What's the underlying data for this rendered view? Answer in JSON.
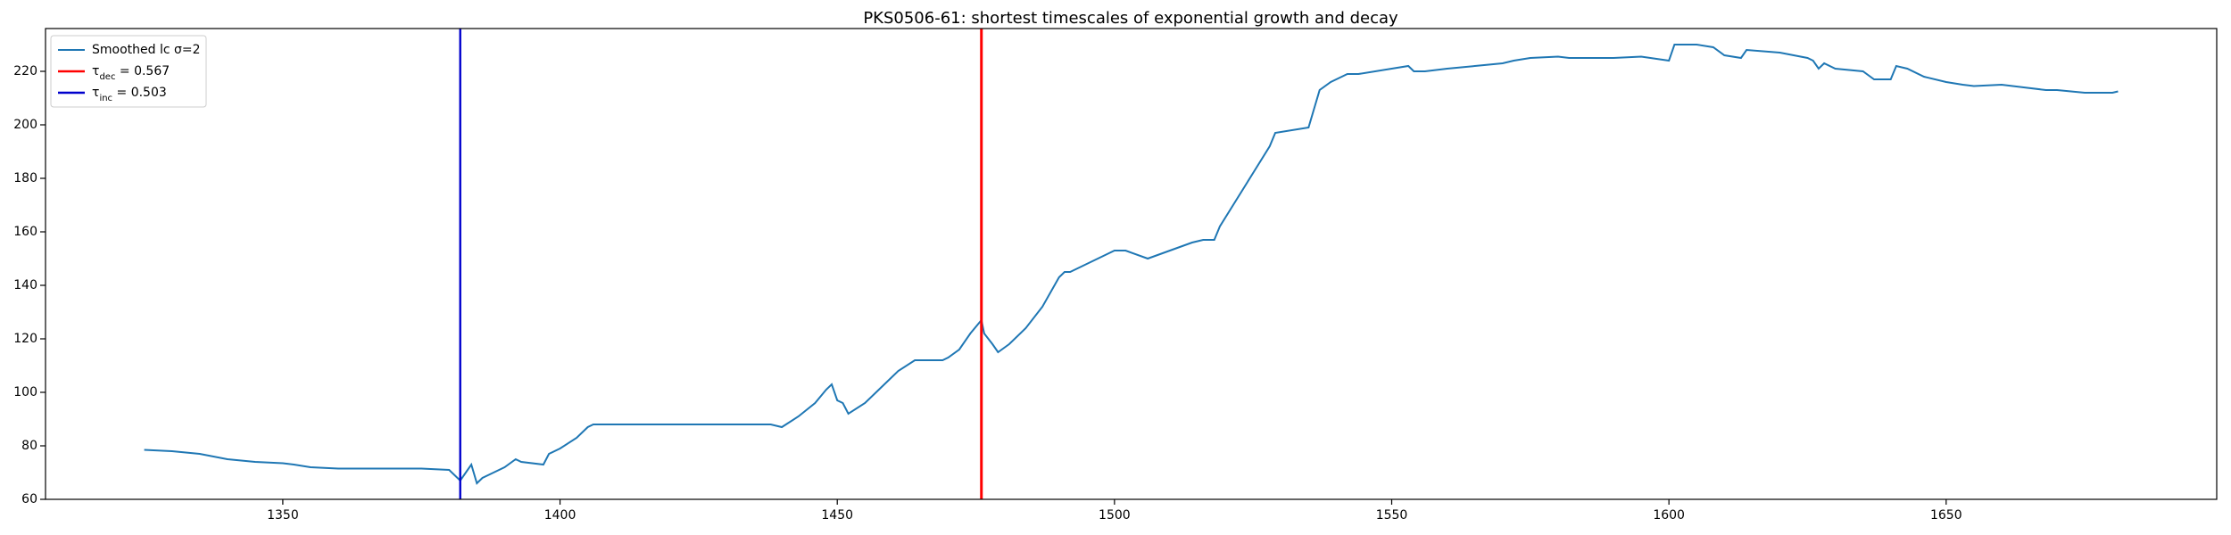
{
  "chart_data": {
    "type": "line",
    "title": "PKS0506-61: shortest timescales of exponential growth and decay",
    "x": [
      1325,
      1330,
      1335,
      1340,
      1345,
      1350,
      1352,
      1355,
      1360,
      1365,
      1370,
      1375,
      1380,
      1381,
      1382,
      1383,
      1384,
      1385,
      1386,
      1388,
      1390,
      1392,
      1393,
      1397,
      1398,
      1400,
      1403,
      1405,
      1406,
      1420,
      1438,
      1440,
      1443,
      1446,
      1448,
      1449,
      1450,
      1451,
      1452,
      1455,
      1458,
      1461,
      1464,
      1469,
      1470,
      1472,
      1474,
      1476,
      1476.5,
      1478,
      1479,
      1481,
      1484,
      1487,
      1490,
      1491,
      1492,
      1495,
      1500,
      1502,
      1506,
      1510,
      1514,
      1516,
      1518,
      1519,
      1522,
      1525,
      1528,
      1529,
      1535,
      1537,
      1539,
      1541,
      1542,
      1544,
      1550,
      1553,
      1554,
      1556,
      1560,
      1565,
      1570,
      1572,
      1575,
      1580,
      1582,
      1590,
      1595,
      1600,
      1601,
      1605,
      1608,
      1610,
      1613,
      1614,
      1620,
      1625,
      1626,
      1627,
      1628,
      1630,
      1635,
      1637,
      1640,
      1641,
      1643,
      1646,
      1650,
      1653,
      1655,
      1660,
      1664,
      1668,
      1670,
      1675,
      1680,
      1681
    ],
    "series": [
      {
        "name": "Smoothed lc σ=2",
        "color": "#1f77b4",
        "values": [
          78.5,
          78,
          77,
          75,
          74,
          73.5,
          73,
          72,
          71.5,
          71.5,
          71.5,
          71.5,
          71,
          69,
          67,
          70,
          73,
          66,
          68,
          70,
          72,
          75,
          74,
          73,
          77,
          79,
          83,
          87,
          88,
          88,
          88,
          87,
          91,
          96,
          101,
          103,
          97,
          96,
          92,
          96,
          102,
          108,
          112,
          112,
          113,
          116,
          122,
          127,
          122,
          118,
          115,
          118,
          124,
          132,
          143,
          145,
          145,
          148,
          153,
          153,
          150,
          153,
          156,
          157,
          157,
          162,
          172,
          182,
          192,
          197,
          199,
          213,
          216,
          218,
          219,
          219,
          221,
          222,
          220,
          220,
          221,
          222,
          223,
          224,
          225,
          225.5,
          225,
          225,
          225.5,
          224,
          230,
          230,
          229,
          226,
          225,
          228,
          227,
          225,
          224,
          221,
          223,
          221,
          220,
          217,
          217,
          222,
          221,
          218,
          216,
          215,
          214.5,
          215,
          214,
          213,
          213,
          212,
          212,
          212.5
        ]
      }
    ],
    "vlines": [
      {
        "x": 1476,
        "color": "red",
        "label": [
          "τ",
          "dec",
          " = 0.567"
        ]
      },
      {
        "x": 1382,
        "color": "#0000cd",
        "label": [
          "τ",
          "inc",
          " = 0.503"
        ]
      }
    ],
    "xlim": [
      1307.2,
      1698.8
    ],
    "ylim": [
      60,
      236
    ],
    "xticks": [
      1350,
      1400,
      1450,
      1500,
      1550,
      1600,
      1650
    ],
    "yticks": [
      60,
      80,
      100,
      120,
      140,
      160,
      180,
      200,
      220
    ],
    "legend": "upper left"
  }
}
